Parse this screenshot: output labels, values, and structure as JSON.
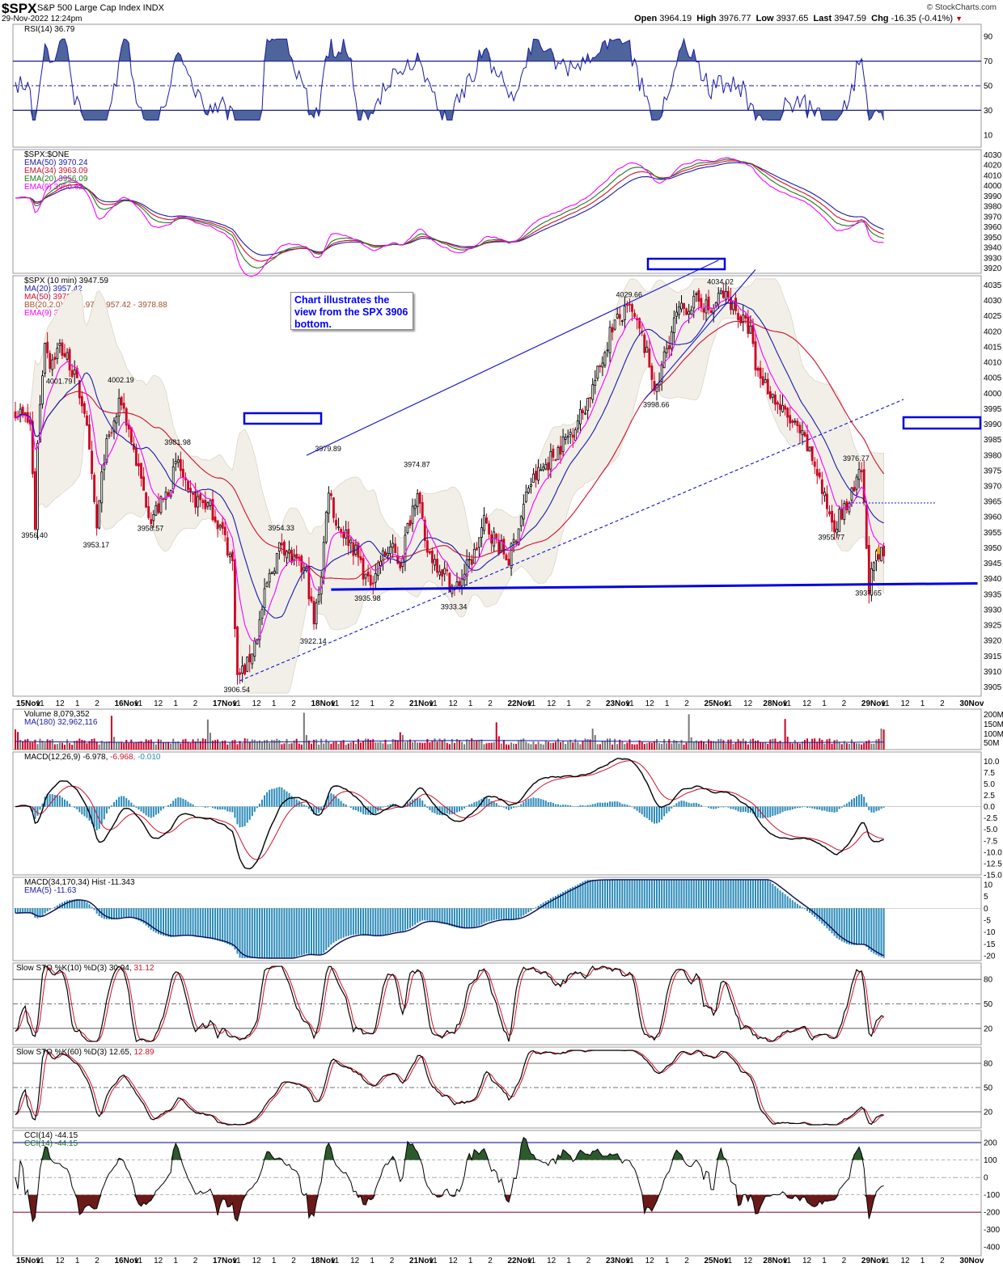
{
  "header": {
    "symbol": "$SPX",
    "name": "S&P 500 Large Cap Index INDX",
    "date": "29-Nov-2022 12:24pm",
    "brand": "© StockCharts.com",
    "open_label": "Open",
    "open": "3964.19",
    "high_label": "High",
    "high": "3976.77",
    "low_label": "Low",
    "low": "3937.65",
    "last_label": "Last",
    "last": "3947.59",
    "chg_label": "Chg",
    "chg": "-16.35 (-0.41%)"
  },
  "colors": {
    "up": "#000000",
    "down": "#cc0022",
    "blue": "#1a1aa8",
    "red": "#d0102a",
    "green": "#1a7a1a",
    "magenta": "#ff00ff",
    "hist": "#2a8ab8",
    "cci_up": "#2d5a2d",
    "cci_dn": "#6b1a1a"
  },
  "annotation": {
    "text": "Chart illustrates the view from the SPX 3906 bottom."
  },
  "chart_data": [
    {
      "panel": "rsi",
      "type": "line",
      "legend": [
        "RSI(14) 36.79"
      ],
      "ylim": [
        0,
        100
      ],
      "yticks": [
        10,
        30,
        50,
        70,
        90
      ],
      "levels": [
        30,
        50,
        70
      ]
    },
    {
      "panel": "ratio",
      "type": "line",
      "legend": [
        "$SPX:$ONE",
        "EMA(50) 3970.24",
        "EMA(34) 3963.09",
        "EMA(20) 3956.09",
        "EMA(9) 3950.62"
      ],
      "ylim": [
        3915,
        4035
      ],
      "yticks": [
        3920,
        3930,
        3940,
        3950,
        3960,
        3970,
        3980,
        3990,
        4000,
        4010,
        4020,
        4030
      ]
    },
    {
      "panel": "price",
      "type": "candlestick",
      "legend": [
        "$SPX (10 min) 3947.59",
        "MA(20) 3957.42",
        "MA(50) 3970.56",
        "BB(20,2.0) 3935.97 - 3957.42 - 3978.88",
        "EMA(9) 3950.62"
      ],
      "ylim": [
        3902,
        4038
      ],
      "yticks": [
        3905,
        3910,
        3915,
        3920,
        3925,
        3930,
        3935,
        3940,
        3945,
        3950,
        3955,
        3960,
        3965,
        3970,
        3975,
        3980,
        3985,
        3990,
        3995,
        4000,
        4005,
        4010,
        4015,
        4020,
        4025,
        4030,
        4035
      ],
      "price_labels": [
        {
          "text": "3956.40",
          "bar": 8,
          "price": 3956.4
        },
        {
          "text": "4001.79",
          "bar": 18,
          "price": 4001.8
        },
        {
          "text": "3953.17",
          "bar": 33,
          "price": 3953.2
        },
        {
          "text": "4002.19",
          "bar": 43,
          "price": 4002.2
        },
        {
          "text": "3958.57",
          "bar": 55,
          "price": 3958.6
        },
        {
          "text": "3981.98",
          "bar": 66,
          "price": 3982.0
        },
        {
          "text": "3906.54",
          "bar": 90,
          "price": 3906.5
        },
        {
          "text": "3954.33",
          "bar": 108,
          "price": 3954.3
        },
        {
          "text": "3922.14",
          "bar": 121,
          "price": 3922.1
        },
        {
          "text": "3979.89",
          "bar": 127,
          "price": 3979.9
        },
        {
          "text": "3935.98",
          "bar": 143,
          "price": 3936.0
        },
        {
          "text": "3974.87",
          "bar": 163,
          "price": 3974.9
        },
        {
          "text": "3933.34",
          "bar": 178,
          "price": 3933.3
        },
        {
          "text": "4029.66",
          "bar": 249,
          "price": 4029.7
        },
        {
          "text": "3998.66",
          "bar": 260,
          "price": 3998.7
        },
        {
          "text": "4034.02",
          "bar": 286,
          "price": 4034.0
        },
        {
          "text": "3955.77",
          "bar": 331,
          "price": 3955.8
        },
        {
          "text": "3976.77",
          "bar": 341,
          "price": 3976.8
        },
        {
          "text": "3937.65",
          "bar": 346,
          "price": 3937.7
        }
      ]
    },
    {
      "panel": "volume",
      "type": "bar",
      "legend": [
        "Volume 8,079,352",
        "MA(180) 32,962,116"
      ],
      "yticks": [
        "50M",
        "100M",
        "150M",
        "200M"
      ]
    },
    {
      "panel": "macd1",
      "type": "line",
      "legend": [
        "MACD(12,26,9) -6.978, ",
        "-6.968",
        ", -0.010"
      ],
      "ylim": [
        -15,
        12
      ],
      "yticks": [
        10.0,
        7.5,
        5.0,
        2.5,
        0.0,
        -2.5,
        -5.0,
        -7.5,
        -10.0,
        -12.5,
        -15.0
      ]
    },
    {
      "panel": "macd2",
      "type": "area",
      "legend": [
        "MACD(34,170,34) Hist -11.343",
        "EMA(5) -11.63"
      ],
      "ylim": [
        -22,
        13
      ],
      "yticks": [
        10,
        5,
        0,
        -5,
        -10,
        -15,
        -20
      ]
    },
    {
      "panel": "sto1",
      "type": "line",
      "legend": [
        "Slow STO %K(10) %D(3) 30.94, ",
        "31.12"
      ],
      "ylim": [
        0,
        100
      ],
      "yticks": [
        20,
        50,
        80
      ],
      "levels": [
        20,
        50,
        80
      ]
    },
    {
      "panel": "sto2",
      "type": "line",
      "legend": [
        "Slow STO %K(60) %D(3) 12.65, ",
        "12.89"
      ],
      "ylim": [
        0,
        100
      ],
      "yticks": [
        20,
        50,
        80
      ],
      "levels": [
        20,
        50,
        80
      ]
    },
    {
      "panel": "cci",
      "type": "line",
      "legend": [
        "CCI(14) -44.15",
        "CCI(14) -44.15"
      ],
      "ylim": [
        -450,
        270
      ],
      "yticks": [
        200,
        100,
        0,
        -100,
        -200,
        -300,
        -400
      ],
      "levels": [
        200,
        100,
        0,
        -100,
        -200
      ]
    }
  ],
  "x_axis": {
    "labels": [
      "15Nov",
      "11",
      "12",
      "1",
      "2",
      "16Nov",
      "11",
      "12",
      "1",
      "2",
      "17Nov",
      "11",
      "12",
      "1",
      "2",
      "18Nov",
      "11",
      "12",
      "1",
      "2",
      "21Nov",
      "11",
      "12",
      "1",
      "2",
      "22Nov",
      "11",
      "12",
      "1",
      "2",
      "23Nov",
      "11",
      "12",
      "1",
      "2",
      "25Nov",
      "11",
      "12",
      "28Nov",
      "11",
      "12",
      "1",
      "2",
      "29Nov",
      "11",
      "12",
      "1",
      "2",
      "30Nov"
    ]
  }
}
